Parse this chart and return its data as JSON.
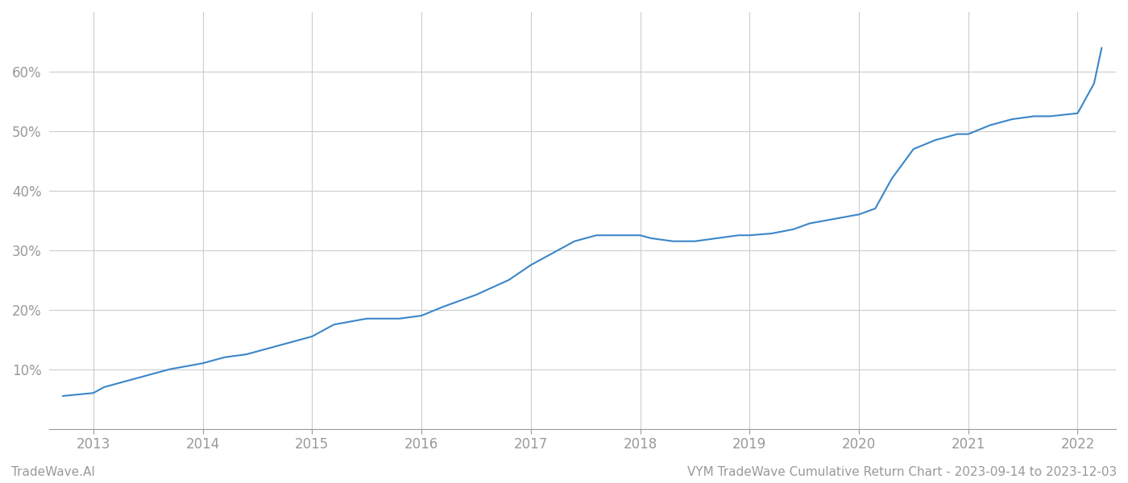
{
  "title": "VYM TradeWave Cumulative Return Chart - 2023-09-14 to 2023-12-03",
  "line_color": "#3a86c8",
  "line_width": 1.5,
  "background_color": "#ffffff",
  "grid_color": "#cccccc",
  "x_values": [
    2012.72,
    2013.0,
    2013.1,
    2013.3,
    2013.5,
    2013.7,
    2014.0,
    2014.2,
    2014.4,
    2014.6,
    2014.8,
    2015.0,
    2015.2,
    2015.5,
    2015.8,
    2016.0,
    2016.2,
    2016.5,
    2016.8,
    2017.0,
    2017.2,
    2017.4,
    2017.6,
    2017.8,
    2018.0,
    2018.1,
    2018.3,
    2018.5,
    2018.7,
    2018.9,
    2019.0,
    2019.2,
    2019.4,
    2019.55,
    2019.7,
    2019.85,
    2020.0,
    2020.15,
    2020.3,
    2020.5,
    2020.7,
    2020.9,
    2021.0,
    2021.2,
    2021.4,
    2021.6,
    2021.75,
    2022.0,
    2022.15,
    2022.22
  ],
  "y_values": [
    5.5,
    6.0,
    7.0,
    8.0,
    9.0,
    10.0,
    11.0,
    12.0,
    12.5,
    13.5,
    14.5,
    15.5,
    17.5,
    18.5,
    18.5,
    19.0,
    20.5,
    22.5,
    25.0,
    27.5,
    29.5,
    31.5,
    32.5,
    32.5,
    32.5,
    32.0,
    31.5,
    31.5,
    32.0,
    32.5,
    32.5,
    32.8,
    33.5,
    34.5,
    35.0,
    35.5,
    36.0,
    37.0,
    42.0,
    47.0,
    48.5,
    49.5,
    49.5,
    51.0,
    52.0,
    52.5,
    52.5,
    53.0,
    58.0,
    64.0
  ],
  "x_ticks": [
    2013,
    2014,
    2015,
    2016,
    2017,
    2018,
    2019,
    2020,
    2021,
    2022
  ],
  "y_ticks": [
    10,
    20,
    30,
    40,
    50,
    60
  ],
  "xlim": [
    2012.6,
    2022.35
  ],
  "ylim": [
    0,
    70
  ],
  "footer_left": "TradeWave.AI",
  "footer_right": "VYM TradeWave Cumulative Return Chart - 2023-09-14 to 2023-12-03",
  "tick_label_color": "#999999",
  "footer_color": "#999999",
  "footer_fontsize": 11
}
